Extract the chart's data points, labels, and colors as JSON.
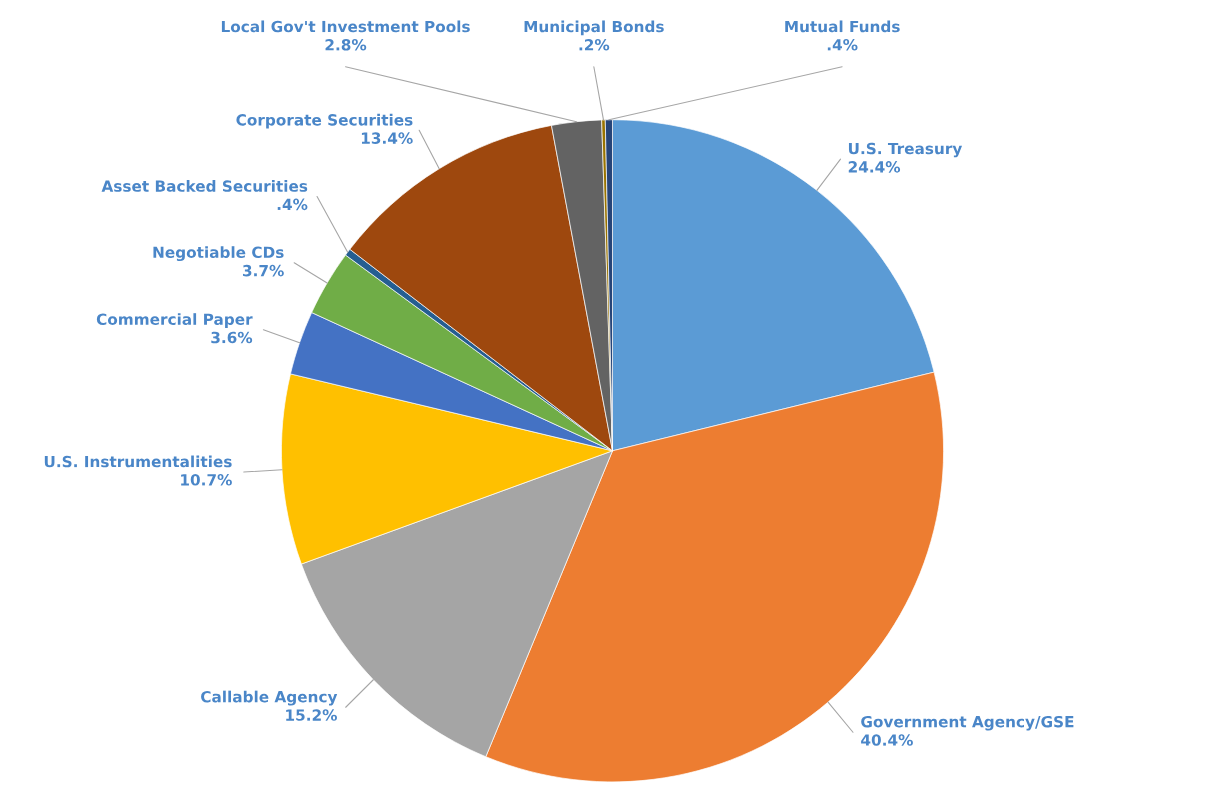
{
  "chart_data": {
    "type": "pie",
    "categories": [
      "U.S. Treasury",
      "Government Agency/GSE",
      "Callable Agency",
      "U.S. Instrumentalities",
      "Commercial Paper",
      "Negotiable CDs",
      "Asset Backed Securities",
      "Corporate Securities",
      "Local Gov't Investment Pools",
      "Municipal Bonds",
      "Mutual Funds"
    ],
    "values": [
      24.4,
      40.4,
      15.2,
      10.7,
      3.6,
      3.7,
      0.4,
      13.4,
      2.8,
      0.2,
      0.4
    ],
    "value_labels": [
      "24.4%",
      "40.4%",
      "15.2%",
      "10.7%",
      "3.6%",
      "3.7%",
      ".4%",
      "13.4%",
      "2.8%",
      ".2%",
      ".4%"
    ],
    "colors": [
      "#5b9bd5",
      "#ed7d31",
      "#a5a5a5",
      "#ffc000",
      "#4472c4",
      "#70ad47",
      "#255e91",
      "#9e480e",
      "#636363",
      "#997300",
      "#264478"
    ],
    "legend": false
  }
}
